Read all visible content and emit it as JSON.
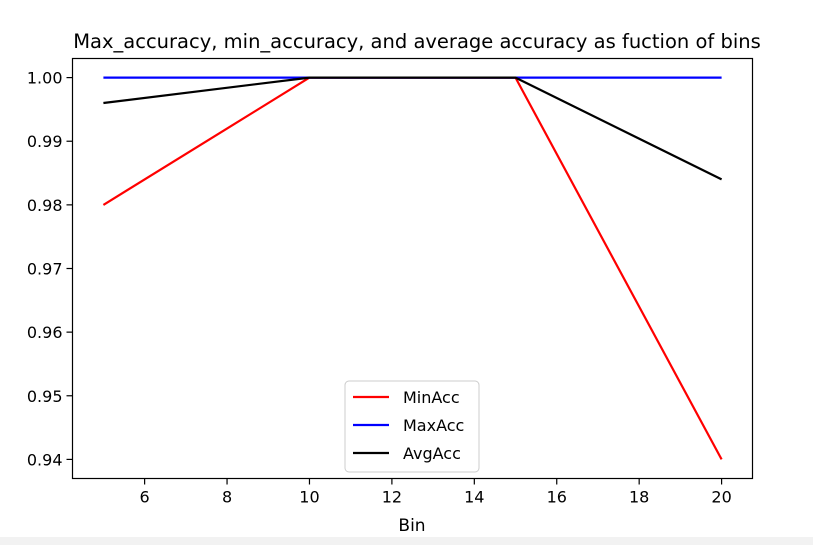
{
  "chart_data": {
    "type": "line",
    "title": "Max_accuracy, min_accuracy, and average accuracy as fuction of bins",
    "xlabel": "Bin",
    "ylabel": "",
    "x": [
      5,
      10,
      15,
      20
    ],
    "xlim": [
      4.25,
      20.75
    ],
    "ylim": [
      0.937,
      1.003
    ],
    "xticks": [
      6,
      8,
      10,
      12,
      14,
      16,
      18,
      20
    ],
    "yticks": [
      0.94,
      0.95,
      0.96,
      0.97,
      0.98,
      0.99,
      1.0
    ],
    "ytick_labels": [
      "0.94",
      "0.95",
      "0.96",
      "0.97",
      "0.98",
      "0.99",
      "1.00"
    ],
    "grid": false,
    "legend_position": "lower-center",
    "series": [
      {
        "name": "MinAcc",
        "color": "#ff0000",
        "values": [
          0.98,
          1.0,
          1.0,
          0.94
        ]
      },
      {
        "name": "MaxAcc",
        "color": "#0000ff",
        "values": [
          1.0,
          1.0,
          1.0,
          1.0
        ]
      },
      {
        "name": "AvgAcc",
        "color": "#000000",
        "values": [
          0.996,
          1.0,
          1.0,
          0.984
        ]
      }
    ]
  }
}
